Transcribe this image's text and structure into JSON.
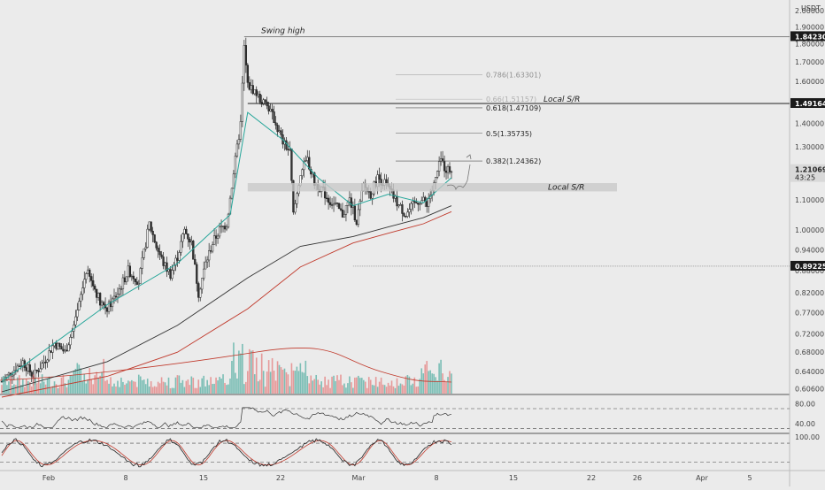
{
  "currency": "USDT",
  "colors": {
    "background": "#ebebeb",
    "up": "#26a69a",
    "down": "#ef5350",
    "up_candle": "#1a1a1a",
    "down_candle": "#333333",
    "ema_fast": "#26a69a",
    "ema_slow": "#333333",
    "ma_red": "#c0392b",
    "price_tag": "#1a1a1a",
    "sr_band": "#c9c9c9"
  },
  "chart_data": [
    {
      "type": "candlestick",
      "panel": "price",
      "scale": "log",
      "ylim": [
        0.6,
        2.0
      ],
      "y_ticks": [
        "2.00000",
        "1.90000",
        "1.80000",
        "1.70000",
        "1.60000",
        "1.50000",
        "1.40000",
        "1.30000",
        "1.20000",
        "1.10000",
        "1.00000",
        "0.94000",
        "0.88000",
        "0.82000",
        "0.77000",
        "0.72000",
        "0.68000",
        "0.64000",
        "0.60600"
      ],
      "x_ticks": [
        "Feb",
        "8",
        "15",
        "22",
        "Mar",
        "8",
        "15",
        "22",
        "26",
        "Apr",
        "5"
      ],
      "price_labels": [
        {
          "text": "1.84230",
          "value": 1.8423
        },
        {
          "text": "1.49164",
          "value": 1.49164
        },
        {
          "text": "1.21069",
          "value": 1.21069,
          "countdown": "43:25"
        },
        {
          "text": "0.89225",
          "value": 0.89225
        }
      ],
      "fibonacci": [
        {
          "label": "0.786(1.63301)",
          "value": 1.63301
        },
        {
          "label": "0.66(1.51157)",
          "value": 1.51157
        },
        {
          "label": "0.618(1.47109)",
          "value": 1.47109
        },
        {
          "label": "0.5(1.35735)",
          "value": 1.35735
        },
        {
          "label": "0.382(1.24362)",
          "value": 1.24362
        }
      ],
      "annotations": [
        {
          "text": "Swing high",
          "value": 1.8423
        },
        {
          "text": "Local S/R",
          "value": 1.49164
        },
        {
          "text": "Local S/R",
          "value": 1.15
        }
      ],
      "close_path": [
        [
          0,
          0.62
        ],
        [
          6,
          0.64
        ],
        [
          12,
          0.66
        ],
        [
          18,
          0.63
        ],
        [
          24,
          0.66
        ],
        [
          30,
          0.7
        ],
        [
          36,
          0.68
        ],
        [
          42,
          0.75
        ],
        [
          48,
          0.88
        ],
        [
          52,
          0.84
        ],
        [
          56,
          0.8
        ],
        [
          60,
          0.78
        ],
        [
          66,
          0.82
        ],
        [
          72,
          0.88
        ],
        [
          78,
          0.85
        ],
        [
          84,
          1.02
        ],
        [
          88,
          0.95
        ],
        [
          92,
          0.9
        ],
        [
          96,
          0.87
        ],
        [
          100,
          0.92
        ],
        [
          104,
          1.0
        ],
        [
          108,
          0.96
        ],
        [
          112,
          0.82
        ],
        [
          116,
          0.9
        ],
        [
          120,
          0.96
        ],
        [
          124,
          1.0
        ],
        [
          128,
          1.02
        ],
        [
          132,
          1.2
        ],
        [
          136,
          1.4
        ],
        [
          138,
          1.78
        ],
        [
          140,
          1.58
        ],
        [
          144,
          1.55
        ],
        [
          148,
          1.5
        ],
        [
          152,
          1.47
        ],
        [
          156,
          1.4
        ],
        [
          160,
          1.32
        ],
        [
          164,
          1.28
        ],
        [
          166,
          1.05
        ],
        [
          170,
          1.2
        ],
        [
          174,
          1.25
        ],
        [
          178,
          1.16
        ],
        [
          182,
          1.14
        ],
        [
          186,
          1.1
        ],
        [
          190,
          1.08
        ],
        [
          194,
          1.05
        ],
        [
          198,
          1.1
        ],
        [
          202,
          1.03
        ],
        [
          206,
          1.15
        ],
        [
          210,
          1.12
        ],
        [
          214,
          1.18
        ],
        [
          218,
          1.16
        ],
        [
          222,
          1.12
        ],
        [
          226,
          1.08
        ],
        [
          230,
          1.05
        ],
        [
          234,
          1.08
        ],
        [
          238,
          1.1
        ],
        [
          242,
          1.09
        ],
        [
          246,
          1.15
        ],
        [
          250,
          1.25
        ],
        [
          252,
          1.22
        ],
        [
          254,
          1.21
        ],
        [
          256,
          1.21069
        ]
      ],
      "ema_fast": [
        [
          0,
          0.62
        ],
        [
          60,
          0.79
        ],
        [
          100,
          0.9
        ],
        [
          130,
          1.05
        ],
        [
          140,
          1.45
        ],
        [
          160,
          1.33
        ],
        [
          180,
          1.18
        ],
        [
          200,
          1.08
        ],
        [
          220,
          1.12
        ],
        [
          240,
          1.09
        ],
        [
          256,
          1.18
        ]
      ],
      "ema_slow": [
        [
          0,
          0.6
        ],
        [
          60,
          0.66
        ],
        [
          100,
          0.74
        ],
        [
          140,
          0.86
        ],
        [
          170,
          0.95
        ],
        [
          200,
          0.98
        ],
        [
          220,
          1.01
        ],
        [
          240,
          1.04
        ],
        [
          256,
          1.08
        ]
      ],
      "ma_red": [
        [
          0,
          0.59
        ],
        [
          60,
          0.63
        ],
        [
          100,
          0.68
        ],
        [
          140,
          0.78
        ],
        [
          170,
          0.89
        ],
        [
          200,
          0.96
        ],
        [
          220,
          0.99
        ],
        [
          240,
          1.02
        ],
        [
          256,
          1.06
        ]
      ]
    },
    {
      "type": "bar",
      "panel": "volume",
      "note": "volume bars with moving average"
    },
    {
      "type": "line",
      "panel": "rsi",
      "y_ticks": [
        "80.00",
        "40.00"
      ],
      "bands": [
        70,
        30
      ]
    },
    {
      "type": "line",
      "panel": "stoch",
      "y_ticks": [
        "100.00"
      ],
      "bands": [
        80,
        20
      ]
    }
  ]
}
